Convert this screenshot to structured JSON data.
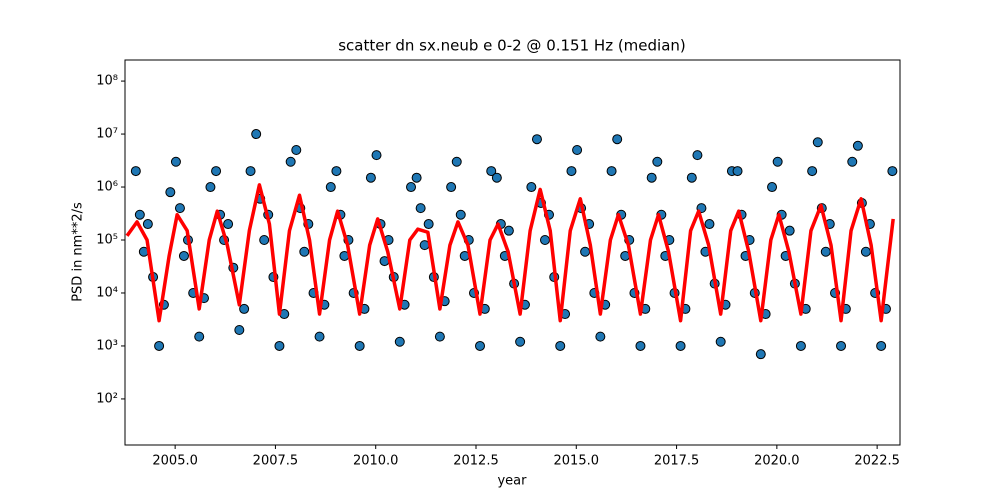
{
  "chart_data": {
    "type": "scatter",
    "title": "scatter dn sx.neub e 0-2 @ 0.151 Hz (median)",
    "xlabel": "year",
    "ylabel": "PSD in nm**2/s",
    "log_y": true,
    "xlim": [
      2003.75,
      2023.07
    ],
    "ylim": [
      13.5,
      250000000
    ],
    "xticks": [
      {
        "value": 2005,
        "label": "2005.0"
      },
      2007.5,
      {
        "value": 2010,
        "label": "2010.0"
      },
      2012.5,
      {
        "value": 2015,
        "label": "2015.0"
      },
      2017.5,
      {
        "value": 2020,
        "label": "2020.0"
      },
      2022.5
    ],
    "yticks": [
      {
        "value": 100,
        "label": "10²"
      },
      {
        "value": 1000,
        "label": "10³"
      },
      {
        "value": 10000,
        "label": "10⁴"
      },
      {
        "value": 100000,
        "label": "10⁵"
      },
      {
        "value": 1000000,
        "label": "10⁶"
      },
      {
        "value": 10000000,
        "label": "10⁷"
      },
      {
        "value": 100000000,
        "label": "10⁸"
      }
    ],
    "color": "#1f77b4",
    "edge_color": "#000000",
    "x": [
      2004.02,
      2004.12,
      2004.22,
      2004.32,
      2004.45,
      2004.6,
      2004.72,
      2004.88,
      2005.02,
      2005.12,
      2005.22,
      2005.32,
      2005.45,
      2005.6,
      2005.72,
      2005.88,
      2006.02,
      2006.12,
      2006.22,
      2006.32,
      2006.45,
      2006.6,
      2006.72,
      2006.88,
      2007.02,
      2007.12,
      2007.22,
      2007.32,
      2007.45,
      2007.6,
      2007.72,
      2007.88,
      2008.02,
      2008.12,
      2008.22,
      2008.32,
      2008.45,
      2008.6,
      2008.72,
      2008.88,
      2009.02,
      2009.12,
      2009.22,
      2009.32,
      2009.45,
      2009.6,
      2009.72,
      2009.88,
      2010.02,
      2010.12,
      2010.22,
      2010.32,
      2010.45,
      2010.6,
      2010.72,
      2010.88,
      2011.02,
      2011.12,
      2011.22,
      2011.32,
      2011.45,
      2011.6,
      2011.72,
      2011.88,
      2012.02,
      2012.12,
      2012.22,
      2012.32,
      2012.45,
      2012.6,
      2012.72,
      2012.88,
      2013.02,
      2013.12,
      2013.22,
      2013.32,
      2013.45,
      2013.6,
      2013.72,
      2013.88,
      2014.02,
      2014.12,
      2014.22,
      2014.32,
      2014.45,
      2014.6,
      2014.72,
      2014.88,
      2015.02,
      2015.12,
      2015.22,
      2015.32,
      2015.45,
      2015.6,
      2015.72,
      2015.88,
      2016.02,
      2016.12,
      2016.22,
      2016.32,
      2016.45,
      2016.6,
      2016.72,
      2016.88,
      2017.02,
      2017.12,
      2017.22,
      2017.32,
      2017.45,
      2017.6,
      2017.72,
      2017.88,
      2018.02,
      2018.12,
      2018.22,
      2018.32,
      2018.45,
      2018.6,
      2018.72,
      2018.88,
      2019.02,
      2019.12,
      2019.22,
      2019.32,
      2019.45,
      2019.6,
      2019.72,
      2019.88,
      2020.02,
      2020.12,
      2020.22,
      2020.32,
      2020.45,
      2020.6,
      2020.72,
      2020.88,
      2021.02,
      2021.12,
      2021.22,
      2021.32,
      2021.45,
      2021.6,
      2021.72,
      2021.88,
      2022.02,
      2022.12,
      2022.22,
      2022.32,
      2022.45,
      2022.6,
      2022.72,
      2022.88
    ],
    "values": [
      2000000,
      300000,
      60000,
      200000,
      20000,
      1000,
      6000,
      800000,
      3000000,
      400000,
      50000,
      100000,
      10000,
      1500,
      8000,
      1000000,
      2000000,
      300000,
      100000,
      200000,
      30000,
      2000,
      5000,
      2000000,
      10000000,
      600000,
      100000,
      300000,
      20000,
      1000,
      4000,
      3000000,
      5000000,
      400000,
      60000,
      200000,
      10000,
      1500,
      6000,
      1000000,
      2000000,
      300000,
      50000,
      100000,
      10000,
      1000,
      5000,
      1500000,
      4000000,
      200000,
      40000,
      100000,
      20000,
      1200,
      6000,
      1000000,
      1500000,
      400000,
      80000,
      200000,
      20000,
      1500,
      7000,
      1000000,
      3000000,
      300000,
      50000,
      100000,
      10000,
      1000,
      5000,
      2000000,
      1500000,
      200000,
      50000,
      150000,
      15000,
      1200,
      6000,
      1000000,
      8000000,
      500000,
      100000,
      300000,
      20000,
      1000,
      4000,
      2000000,
      5000000,
      400000,
      60000,
      200000,
      10000,
      1500,
      6000,
      2000000,
      8000000,
      300000,
      50000,
      100000,
      10000,
      1000,
      5000,
      1500000,
      3000000,
      300000,
      50000,
      100000,
      10000,
      1000,
      5000,
      1500000,
      4000000,
      400000,
      60000,
      200000,
      15000,
      1200,
      6000,
      2000000,
      2000000,
      300000,
      50000,
      100000,
      10000,
      700,
      4000,
      1000000,
      3000000,
      300000,
      50000,
      150000,
      15000,
      1000,
      5000,
      2000000,
      7000000,
      400000,
      60000,
      200000,
      10000,
      1000,
      5000,
      3000000,
      6000000,
      500000,
      60000,
      200000,
      10000,
      1000,
      5000,
      2000000
    ],
    "median": {
      "color": "#ff0000",
      "x": [
        2003.8,
        2004.05,
        2004.3,
        2004.6,
        2004.85,
        2005.05,
        2005.3,
        2005.6,
        2005.85,
        2006.05,
        2006.3,
        2006.6,
        2006.85,
        2007.1,
        2007.35,
        2007.6,
        2007.85,
        2008.1,
        2008.35,
        2008.6,
        2008.85,
        2009.05,
        2009.3,
        2009.6,
        2009.85,
        2010.05,
        2010.3,
        2010.6,
        2010.85,
        2011.05,
        2011.3,
        2011.6,
        2011.85,
        2012.05,
        2012.3,
        2012.6,
        2012.85,
        2013.05,
        2013.3,
        2013.6,
        2013.85,
        2014.1,
        2014.35,
        2014.6,
        2014.85,
        2015.1,
        2015.35,
        2015.6,
        2015.85,
        2016.05,
        2016.3,
        2016.6,
        2016.85,
        2017.05,
        2017.3,
        2017.6,
        2017.85,
        2018.05,
        2018.3,
        2018.6,
        2018.85,
        2019.05,
        2019.3,
        2019.6,
        2019.85,
        2020.05,
        2020.3,
        2020.6,
        2020.85,
        2021.1,
        2021.35,
        2021.6,
        2021.85,
        2022.1,
        2022.35,
        2022.6,
        2022.9
      ],
      "values": [
        120000,
        220000,
        100000,
        3000,
        50000,
        300000,
        150000,
        5000,
        100000,
        350000,
        80000,
        6000,
        150000,
        1100000,
        200000,
        4000,
        150000,
        700000,
        100000,
        4000,
        100000,
        350000,
        80000,
        4000,
        80000,
        250000,
        60000,
        5000,
        100000,
        160000,
        140000,
        5000,
        80000,
        220000,
        80000,
        4000,
        100000,
        200000,
        60000,
        4000,
        150000,
        900000,
        150000,
        3000,
        150000,
        600000,
        80000,
        4000,
        100000,
        300000,
        80000,
        4000,
        100000,
        300000,
        60000,
        3000,
        150000,
        350000,
        80000,
        4000,
        150000,
        350000,
        60000,
        3000,
        100000,
        300000,
        60000,
        4000,
        150000,
        450000,
        80000,
        3000,
        150000,
        600000,
        80000,
        3000,
        250000
      ]
    }
  }
}
